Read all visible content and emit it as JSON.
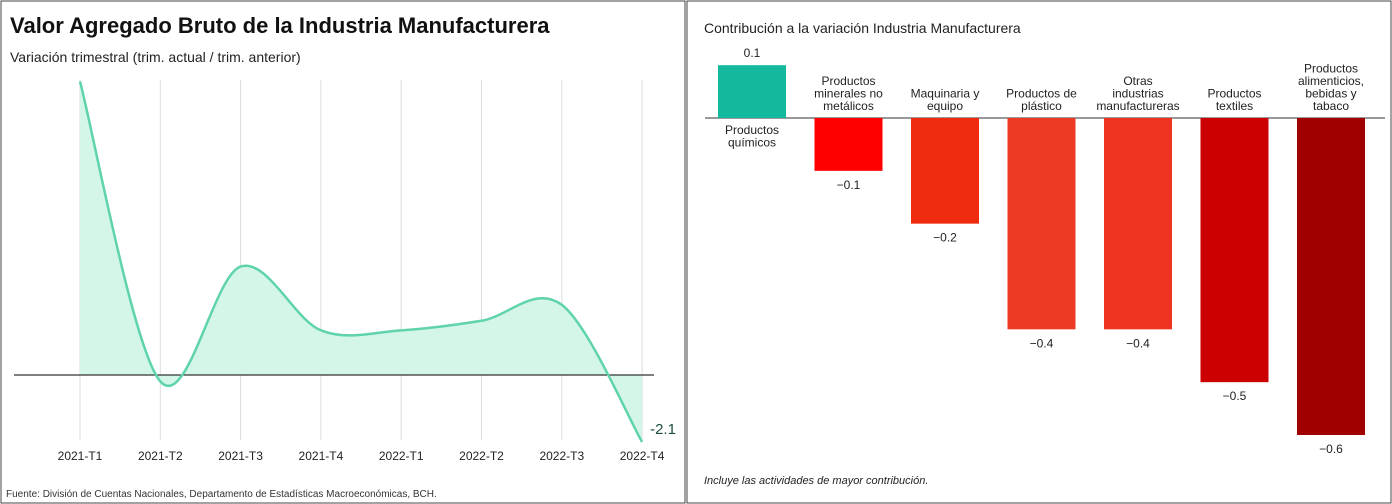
{
  "chart_data": [
    {
      "type": "area",
      "title": "Valor Agregado Bruto de la Industria Manufacturera",
      "subtitle": "Variación trimestral (trim. actual / trim. anterior)",
      "categories": [
        "2021-T1",
        "2021-T2",
        "2021-T3",
        "2021-T4",
        "2022-T1",
        "2022-T2",
        "2022-T3",
        "2022-T4"
      ],
      "values": [
        9.2,
        -0.2,
        3.4,
        1.4,
        1.4,
        1.7,
        2.2,
        -2.1
      ],
      "value_labels": [
        null,
        null,
        null,
        null,
        null,
        null,
        null,
        "-2.1"
      ],
      "color": "#5fd3aa",
      "fill": "#d3f6e8",
      "grid": true,
      "source": "Fuente: División de Cuentas Nacionales, Departamento de Estadísticas Macroeconómicas, BCH."
    },
    {
      "type": "bar",
      "title": "Contribución a la variación Industria Manufacturera",
      "categories": [
        "Productos químicos",
        "Productos minerales no metálicos",
        "Maquinaria y equipo",
        "Productos de plástico",
        "Otras industrias manufactureras",
        "Productos textiles",
        "Productos alimenticios, bebidas y tabaco"
      ],
      "values": [
        0.1,
        -0.1,
        -0.2,
        -0.4,
        -0.4,
        -0.5,
        -0.6
      ],
      "value_labels": [
        "0.1",
        "−0.1",
        "−0.2",
        "−0.4",
        "−0.4",
        "−0.5",
        "−0.6"
      ],
      "colors": [
        "#14b89c",
        "#ff0000",
        "#f02b10",
        "#ec3a24",
        "#ee3320",
        "#cc0000",
        "#a00000"
      ],
      "note": "Incluye las actividades de mayor contribución."
    }
  ]
}
